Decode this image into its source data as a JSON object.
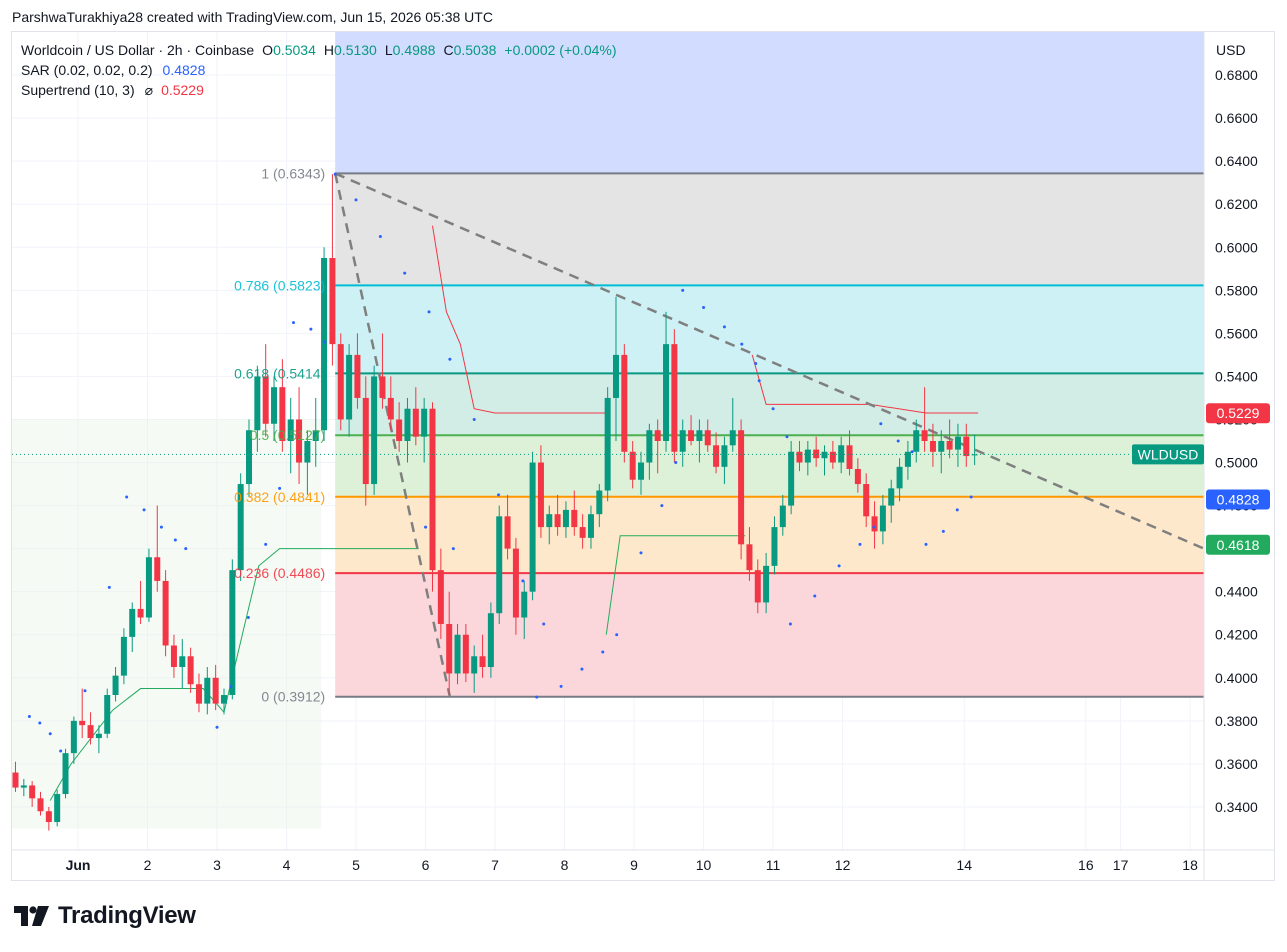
{
  "credit": "ParshwaTurakhiya28 created with TradingView.com, Jun 15, 2026 05:38 UTC",
  "currency": "USD",
  "logo_text": "TradingView",
  "legend": {
    "symbol": "Worldcoin / US Dollar · 2h · Coinbase",
    "o_label": "O",
    "o_value": "0.5034",
    "h_label": "H",
    "h_value": "0.5130",
    "l_label": "L",
    "l_value": "0.4988",
    "c_label": "C",
    "c_value": "0.5038",
    "change": "+0.0002 (+0.04%)",
    "sar_label": "SAR (0.02, 0.02, 0.2)",
    "sar_value": "0.4828",
    "st_label": "Supertrend (10, 3)",
    "st_icon": "⌀",
    "st_value": "0.5229"
  },
  "colors": {
    "up": "#089981",
    "down": "#f23645",
    "sar": "#2962ff",
    "fib_1": "#787b86",
    "fib_786": "#00bcd4",
    "fib_618": "#089981",
    "fib_5": "#4caf50",
    "fib_382": "#ff9800",
    "fib_236": "#f23645",
    "fib_0": "#787b86"
  },
  "chart_data": {
    "type": "candlestick",
    "symbol": "WLDUSD",
    "timeframe": "2h",
    "y_axis": {
      "ticks": [
        "0.6800",
        "0.6600",
        "0.6400",
        "0.6200",
        "0.6000",
        "0.5800",
        "0.5600",
        "0.5400",
        "0.5200",
        "0.5000",
        "0.4800",
        "0.4600",
        "0.4400",
        "0.4200",
        "0.4000",
        "0.3800",
        "0.3600",
        "0.3400"
      ],
      "range": [
        0.32,
        0.7
      ]
    },
    "x_axis": {
      "ticks": [
        {
          "label": "Jun",
          "day": 1
        },
        {
          "label": "2",
          "day": 2
        },
        {
          "label": "3",
          "day": 3
        },
        {
          "label": "4",
          "day": 4
        },
        {
          "label": "5",
          "day": 5
        },
        {
          "label": "6",
          "day": 6
        },
        {
          "label": "7",
          "day": 7
        },
        {
          "label": "8",
          "day": 8
        },
        {
          "label": "9",
          "day": 9
        },
        {
          "label": "10",
          "day": 10
        },
        {
          "label": "11",
          "day": 11
        },
        {
          "label": "12",
          "day": 12
        },
        {
          "label": "14",
          "day": 13.75
        },
        {
          "label": "16",
          "day": 15.5
        },
        {
          "label": "17",
          "day": 16
        },
        {
          "label": "18",
          "day": 17
        }
      ],
      "range": [
        0.05,
        17.2
      ]
    },
    "fib_levels": [
      {
        "label": "1 (0.6343)",
        "value": 0.6343,
        "color": "#787b86"
      },
      {
        "label": "0.786 (0.5823)",
        "value": 0.5823,
        "color": "#00bcd4"
      },
      {
        "label": "0.618 (0.5414)",
        "value": 0.5414,
        "color": "#089981"
      },
      {
        "label": "0.5 (0.5127)",
        "value": 0.5127,
        "color": "#4caf50"
      },
      {
        "label": "0.382 (0.4841)",
        "value": 0.4841,
        "color": "#ff9800"
      },
      {
        "label": "0.236 (0.4486)",
        "value": 0.4486,
        "color": "#f23645"
      },
      {
        "label": "0 (0.3912)",
        "value": 0.3912,
        "color": "#787b86"
      }
    ],
    "price_labels": [
      {
        "text": "0.5229",
        "value": 0.5229,
        "color": "#f23645"
      },
      {
        "text": "WLDUSD",
        "value": 0.5038,
        "color": "#089981"
      },
      {
        "text": "0.4828",
        "value": 0.4828,
        "color": "#2962ff"
      },
      {
        "text": "0.4618",
        "value": 0.4618,
        "color": "#22ab5e"
      }
    ],
    "trendline": {
      "from": [
        4.7,
        0.6343
      ],
      "to": [
        17.2,
        0.46
      ]
    },
    "swing_line": [
      [
        4.7,
        0.6343
      ],
      [
        6.35,
        0.3912
      ]
    ],
    "candles": [
      [
        0.1,
        0.356,
        0.361,
        0.347,
        0.349
      ],
      [
        0.22,
        0.349,
        0.353,
        0.345,
        0.35
      ],
      [
        0.34,
        0.35,
        0.352,
        0.34,
        0.344
      ],
      [
        0.46,
        0.344,
        0.347,
        0.336,
        0.338
      ],
      [
        0.58,
        0.338,
        0.34,
        0.329,
        0.333
      ],
      [
        0.7,
        0.333,
        0.348,
        0.331,
        0.346
      ],
      [
        0.82,
        0.346,
        0.367,
        0.344,
        0.365
      ],
      [
        0.94,
        0.365,
        0.382,
        0.36,
        0.38
      ],
      [
        1.06,
        0.38,
        0.395,
        0.372,
        0.378
      ],
      [
        1.18,
        0.378,
        0.384,
        0.369,
        0.372
      ],
      [
        1.3,
        0.372,
        0.378,
        0.365,
        0.374
      ],
      [
        1.42,
        0.374,
        0.395,
        0.372,
        0.392
      ],
      [
        1.54,
        0.392,
        0.405,
        0.389,
        0.401
      ],
      [
        1.66,
        0.401,
        0.423,
        0.397,
        0.419
      ],
      [
        1.78,
        0.419,
        0.435,
        0.412,
        0.432
      ],
      [
        1.9,
        0.432,
        0.445,
        0.425,
        0.428
      ],
      [
        2.02,
        0.428,
        0.46,
        0.426,
        0.456
      ],
      [
        2.14,
        0.456,
        0.48,
        0.44,
        0.445
      ],
      [
        2.26,
        0.445,
        0.45,
        0.41,
        0.415
      ],
      [
        2.38,
        0.415,
        0.42,
        0.4,
        0.405
      ],
      [
        2.5,
        0.405,
        0.418,
        0.395,
        0.41
      ],
      [
        2.62,
        0.41,
        0.414,
        0.393,
        0.397
      ],
      [
        2.74,
        0.397,
        0.402,
        0.384,
        0.388
      ],
      [
        2.86,
        0.388,
        0.405,
        0.383,
        0.4
      ],
      [
        2.98,
        0.4,
        0.406,
        0.385,
        0.388
      ],
      [
        3.1,
        0.388,
        0.395,
        0.383,
        0.392
      ],
      [
        3.22,
        0.392,
        0.455,
        0.39,
        0.45
      ],
      [
        3.34,
        0.45,
        0.495,
        0.445,
        0.49
      ],
      [
        3.46,
        0.49,
        0.52,
        0.484,
        0.515
      ],
      [
        3.58,
        0.515,
        0.545,
        0.505,
        0.54
      ],
      [
        3.7,
        0.54,
        0.555,
        0.512,
        0.518
      ],
      [
        3.82,
        0.518,
        0.54,
        0.51,
        0.535
      ],
      [
        3.94,
        0.535,
        0.548,
        0.505,
        0.51
      ],
      [
        4.06,
        0.51,
        0.53,
        0.495,
        0.52
      ],
      [
        4.18,
        0.52,
        0.535,
        0.49,
        0.5
      ],
      [
        4.3,
        0.5,
        0.515,
        0.485,
        0.51
      ],
      [
        4.42,
        0.51,
        0.53,
        0.498,
        0.515
      ],
      [
        4.54,
        0.515,
        0.6,
        0.51,
        0.595
      ],
      [
        4.66,
        0.595,
        0.634,
        0.545,
        0.555
      ],
      [
        4.78,
        0.555,
        0.56,
        0.515,
        0.52
      ],
      [
        4.9,
        0.52,
        0.555,
        0.512,
        0.55
      ],
      [
        5.02,
        0.55,
        0.56,
        0.525,
        0.53
      ],
      [
        5.14,
        0.53,
        0.54,
        0.48,
        0.49
      ],
      [
        5.26,
        0.49,
        0.545,
        0.485,
        0.54
      ],
      [
        5.38,
        0.54,
        0.56,
        0.525,
        0.53
      ],
      [
        5.5,
        0.53,
        0.54,
        0.515,
        0.52
      ],
      [
        5.62,
        0.52,
        0.528,
        0.505,
        0.51
      ],
      [
        5.74,
        0.51,
        0.53,
        0.5,
        0.525
      ],
      [
        5.86,
        0.525,
        0.535,
        0.508,
        0.512
      ],
      [
        5.98,
        0.512,
        0.53,
        0.5,
        0.525
      ],
      [
        6.1,
        0.525,
        0.528,
        0.44,
        0.45
      ],
      [
        6.22,
        0.45,
        0.46,
        0.418,
        0.425
      ],
      [
        6.34,
        0.425,
        0.44,
        0.392,
        0.402
      ],
      [
        6.46,
        0.402,
        0.425,
        0.397,
        0.42
      ],
      [
        6.58,
        0.42,
        0.425,
        0.398,
        0.402
      ],
      [
        6.7,
        0.402,
        0.415,
        0.393,
        0.41
      ],
      [
        6.82,
        0.41,
        0.42,
        0.4,
        0.405
      ],
      [
        6.94,
        0.405,
        0.435,
        0.4,
        0.43
      ],
      [
        7.06,
        0.43,
        0.48,
        0.425,
        0.475
      ],
      [
        7.18,
        0.475,
        0.485,
        0.455,
        0.46
      ],
      [
        7.3,
        0.46,
        0.465,
        0.42,
        0.428
      ],
      [
        7.42,
        0.428,
        0.445,
        0.418,
        0.44
      ],
      [
        7.54,
        0.44,
        0.505,
        0.436,
        0.5
      ],
      [
        7.66,
        0.5,
        0.508,
        0.465,
        0.47
      ],
      [
        7.78,
        0.47,
        0.48,
        0.462,
        0.476
      ],
      [
        7.9,
        0.476,
        0.485,
        0.466,
        0.47
      ],
      [
        8.02,
        0.47,
        0.482,
        0.465,
        0.478
      ],
      [
        8.14,
        0.478,
        0.487,
        0.466,
        0.47
      ],
      [
        8.26,
        0.47,
        0.476,
        0.46,
        0.465
      ],
      [
        8.38,
        0.465,
        0.48,
        0.46,
        0.476
      ],
      [
        8.5,
        0.476,
        0.49,
        0.47,
        0.487
      ],
      [
        8.62,
        0.487,
        0.535,
        0.482,
        0.53
      ],
      [
        8.74,
        0.53,
        0.577,
        0.51,
        0.55
      ],
      [
        8.86,
        0.55,
        0.555,
        0.5,
        0.505
      ],
      [
        8.98,
        0.505,
        0.51,
        0.488,
        0.492
      ],
      [
        9.1,
        0.492,
        0.505,
        0.485,
        0.5
      ],
      [
        9.22,
        0.5,
        0.518,
        0.492,
        0.515
      ],
      [
        9.34,
        0.515,
        0.52,
        0.495,
        0.51
      ],
      [
        9.46,
        0.51,
        0.57,
        0.505,
        0.555
      ],
      [
        9.58,
        0.555,
        0.562,
        0.5,
        0.505
      ],
      [
        9.7,
        0.505,
        0.52,
        0.498,
        0.515
      ],
      [
        9.82,
        0.515,
        0.522,
        0.508,
        0.51
      ],
      [
        9.94,
        0.51,
        0.52,
        0.5,
        0.515
      ],
      [
        10.06,
        0.515,
        0.52,
        0.505,
        0.508
      ],
      [
        10.18,
        0.508,
        0.514,
        0.495,
        0.498
      ],
      [
        10.3,
        0.498,
        0.512,
        0.49,
        0.508
      ],
      [
        10.42,
        0.508,
        0.53,
        0.505,
        0.515
      ],
      [
        10.54,
        0.515,
        0.52,
        0.455,
        0.462
      ],
      [
        10.66,
        0.462,
        0.47,
        0.445,
        0.45
      ],
      [
        10.78,
        0.45,
        0.455,
        0.43,
        0.435
      ],
      [
        10.9,
        0.435,
        0.458,
        0.43,
        0.452
      ],
      [
        11.02,
        0.452,
        0.475,
        0.448,
        0.47
      ],
      [
        11.14,
        0.47,
        0.485,
        0.466,
        0.48
      ],
      [
        11.26,
        0.48,
        0.51,
        0.476,
        0.505
      ],
      [
        11.38,
        0.505,
        0.51,
        0.496,
        0.5
      ],
      [
        11.5,
        0.5,
        0.51,
        0.494,
        0.506
      ],
      [
        11.62,
        0.506,
        0.512,
        0.498,
        0.502
      ],
      [
        11.74,
        0.502,
        0.508,
        0.494,
        0.505
      ],
      [
        11.86,
        0.505,
        0.51,
        0.497,
        0.5
      ],
      [
        11.98,
        0.5,
        0.512,
        0.495,
        0.508
      ],
      [
        12.1,
        0.508,
        0.515,
        0.494,
        0.497
      ],
      [
        12.22,
        0.497,
        0.502,
        0.486,
        0.49
      ],
      [
        12.34,
        0.49,
        0.495,
        0.47,
        0.475
      ],
      [
        12.46,
        0.475,
        0.482,
        0.46,
        0.468
      ],
      [
        12.58,
        0.468,
        0.485,
        0.462,
        0.48
      ],
      [
        12.7,
        0.48,
        0.492,
        0.472,
        0.488
      ],
      [
        12.82,
        0.488,
        0.502,
        0.482,
        0.498
      ],
      [
        12.94,
        0.498,
        0.51,
        0.492,
        0.505
      ],
      [
        13.06,
        0.505,
        0.52,
        0.5,
        0.515
      ],
      [
        13.18,
        0.515,
        0.535,
        0.505,
        0.51
      ],
      [
        13.3,
        0.51,
        0.518,
        0.498,
        0.505
      ],
      [
        13.42,
        0.505,
        0.515,
        0.495,
        0.51
      ],
      [
        13.54,
        0.51,
        0.52,
        0.502,
        0.506
      ],
      [
        13.66,
        0.506,
        0.518,
        0.498,
        0.512
      ],
      [
        13.78,
        0.512,
        0.518,
        0.498,
        0.503
      ],
      [
        13.9,
        0.5034,
        0.513,
        0.4988,
        0.5038
      ]
    ],
    "sar": [
      [
        0.3,
        0.382
      ],
      [
        0.45,
        0.379
      ],
      [
        0.6,
        0.374
      ],
      [
        0.75,
        0.366
      ],
      [
        1.1,
        0.394
      ],
      [
        1.45,
        0.442
      ],
      [
        1.7,
        0.484
      ],
      [
        1.95,
        0.478
      ],
      [
        2.2,
        0.47
      ],
      [
        2.4,
        0.464
      ],
      [
        2.55,
        0.46
      ],
      [
        3.0,
        0.377
      ],
      [
        3.2,
        0.396
      ],
      [
        3.45,
        0.428
      ],
      [
        3.7,
        0.462
      ],
      [
        3.9,
        0.488
      ],
      [
        4.1,
        0.565
      ],
      [
        4.35,
        0.562
      ],
      [
        4.55,
        0.556
      ],
      [
        4.7,
        0.634
      ],
      [
        5.0,
        0.622
      ],
      [
        5.35,
        0.605
      ],
      [
        5.7,
        0.588
      ],
      [
        6.05,
        0.57
      ],
      [
        6.35,
        0.548
      ],
      [
        6.7,
        0.52
      ],
      [
        7.05,
        0.485
      ],
      [
        7.4,
        0.445
      ],
      [
        7.7,
        0.425
      ],
      [
        6.0,
        0.47
      ],
      [
        6.4,
        0.46
      ],
      [
        7.6,
        0.391
      ],
      [
        7.95,
        0.396
      ],
      [
        8.25,
        0.404
      ],
      [
        8.55,
        0.412
      ],
      [
        8.75,
        0.42
      ],
      [
        9.1,
        0.458
      ],
      [
        9.4,
        0.48
      ],
      [
        9.6,
        0.5
      ],
      [
        9.7,
        0.58
      ],
      [
        10.0,
        0.572
      ],
      [
        10.3,
        0.563
      ],
      [
        10.55,
        0.555
      ],
      [
        10.75,
        0.546
      ],
      [
        10.8,
        0.538
      ],
      [
        11.0,
        0.525
      ],
      [
        11.2,
        0.512
      ],
      [
        11.25,
        0.425
      ],
      [
        11.6,
        0.438
      ],
      [
        11.95,
        0.452
      ],
      [
        12.25,
        0.462
      ],
      [
        12.45,
        0.47
      ],
      [
        12.55,
        0.518
      ],
      [
        12.8,
        0.51
      ],
      [
        13.0,
        0.505
      ],
      [
        13.2,
        0.462
      ],
      [
        13.45,
        0.468
      ],
      [
        13.65,
        0.478
      ],
      [
        13.85,
        0.484
      ]
    ]
  }
}
